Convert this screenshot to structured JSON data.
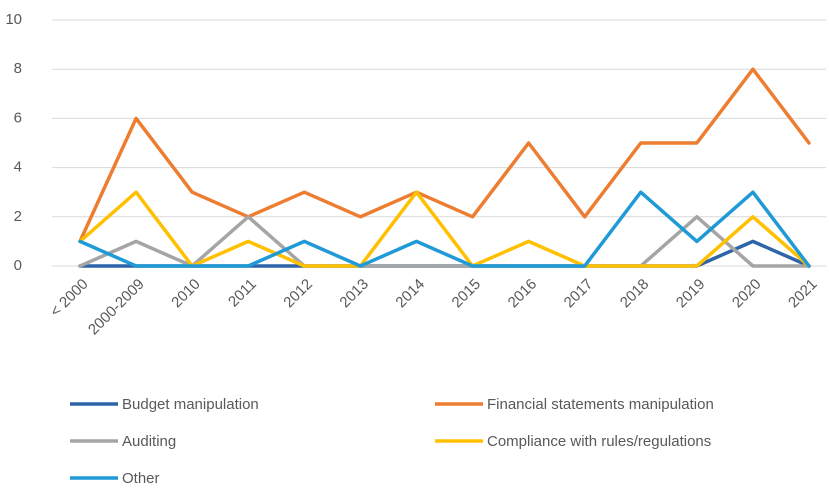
{
  "chart_data": {
    "type": "line",
    "categories": [
      "< 2000",
      "2000-2009",
      "2010",
      "2011",
      "2012",
      "2013",
      "2014",
      "2015",
      "2016",
      "2017",
      "2018",
      "2019",
      "2020",
      "2021"
    ],
    "series": [
      {
        "name": "Budget manipulation",
        "color": "#2e64a8",
        "values": [
          0,
          0,
          0,
          0,
          0,
          0,
          0,
          0,
          0,
          0,
          0,
          0,
          1,
          0
        ]
      },
      {
        "name": "Financial statements manipulation",
        "color": "#ed7d31",
        "values": [
          1,
          6,
          3,
          2,
          3,
          2,
          3,
          2,
          5,
          2,
          5,
          5,
          8,
          5
        ]
      },
      {
        "name": "Auditing",
        "color": "#a5a5a5",
        "values": [
          0,
          1,
          0,
          2,
          0,
          0,
          0,
          0,
          0,
          0,
          0,
          2,
          0,
          0
        ]
      },
      {
        "name": "Compliance with rules/regulations",
        "color": "#ffc000",
        "values": [
          1,
          3,
          0,
          1,
          0,
          0,
          3,
          0,
          1,
          0,
          0,
          0,
          2,
          0
        ]
      },
      {
        "name": "Other",
        "color": "#1f9ad6",
        "values": [
          1,
          0,
          0,
          0,
          1,
          0,
          1,
          0,
          0,
          0,
          3,
          1,
          3,
          0
        ]
      }
    ],
    "ylim": [
      0,
      10
    ],
    "yticks": [
      0,
      2,
      4,
      6,
      8,
      10
    ],
    "grid": true,
    "legend": "bottom"
  }
}
